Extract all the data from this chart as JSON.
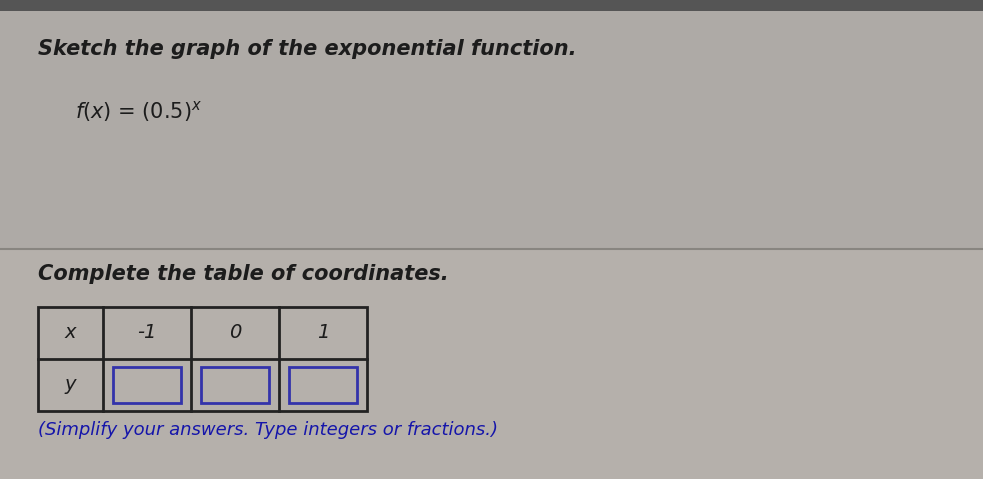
{
  "title_line1": "Sketch the graph of the exponential function.",
  "function_base": "f(x) = (0.5)",
  "function_exp": "x",
  "section2_label": "Complete the table of coordinates.",
  "footer_label": "(Simplify your answers. Type integers or fractions.)",
  "table_x_values": [
    "-1",
    "0",
    "1"
  ],
  "bg_color": "#b2ada8",
  "bg_color_top": "#aeaaa6",
  "bg_color_bottom": "#b5b0ab",
  "divider_color": "#888580",
  "text_color": "#1c1c1c",
  "title_font_size": 15,
  "func_font_size": 15,
  "table_font_size": 14,
  "footer_font_size": 13,
  "box_edge_color": "#3333aa",
  "box_face_color": "#c5c5d8",
  "table_line_color": "#222222",
  "top_bar_color": "#555555"
}
